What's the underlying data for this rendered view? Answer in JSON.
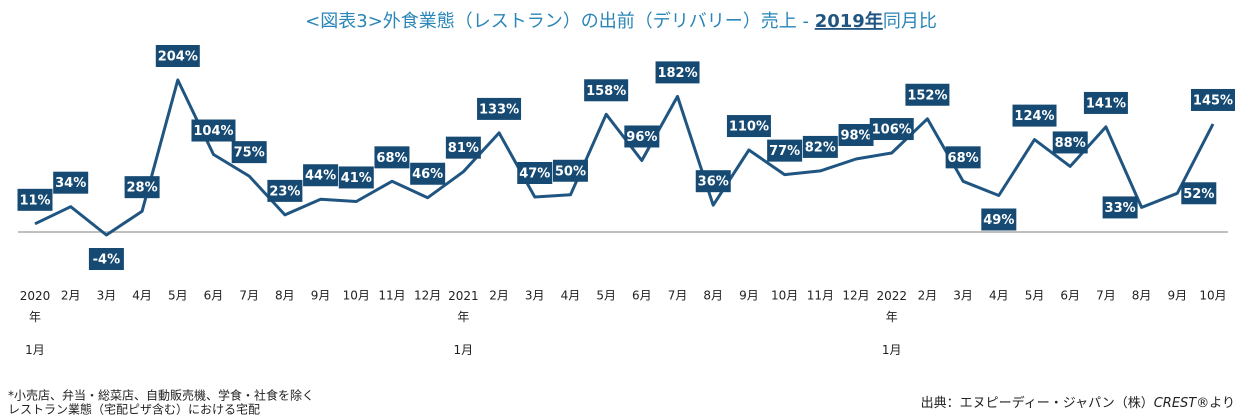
{
  "chart_data": {
    "type": "line",
    "title_parts": [
      "<図表3>外食業態（レストラン）の出前（デリバリー）売上 - ",
      "2019年",
      "同月比"
    ],
    "categories": [
      "2020年1月",
      "2月",
      "3月",
      "4月",
      "5月",
      "6月",
      "7月",
      "8月",
      "9月",
      "10月",
      "11月",
      "12月",
      "2021年1月",
      "2月",
      "3月",
      "4月",
      "5月",
      "6月",
      "7月",
      "8月",
      "9月",
      "10月",
      "11月",
      "12月",
      "2022年1月",
      "2月",
      "3月",
      "4月",
      "5月",
      "6月",
      "7月",
      "8月",
      "9月",
      "10月"
    ],
    "values": [
      11,
      34,
      -4,
      28,
      204,
      104,
      75,
      23,
      44,
      41,
      68,
      46,
      81,
      133,
      47,
      50,
      158,
      96,
      182,
      36,
      110,
      77,
      82,
      98,
      106,
      152,
      68,
      49,
      124,
      88,
      141,
      33,
      52,
      145
    ],
    "value_labels": [
      "11%",
      "34%",
      "-4%",
      "28%",
      "204%",
      "104%",
      "75%",
      "23%",
      "44%",
      "41%",
      "68%",
      "46%",
      "81%",
      "133%",
      "47%",
      "50%",
      "158%",
      "96%",
      "182%",
      "36%",
      "110%",
      "77%",
      "82%",
      "98%",
      "106%",
      "152%",
      "68%",
      "49%",
      "124%",
      "88%",
      "141%",
      "33%",
      "52%",
      "145%"
    ],
    "color": "#1f5580",
    "notes": [
      "*小売店、弁当・総菜店、自動販売機、学食・社食を除く",
      "レストラン業態（宅配ピザ含む）における宅配"
    ],
    "source_parts": [
      "出典：エヌピーディー・ジャパン（株）",
      "CREST®",
      "より"
    ]
  }
}
